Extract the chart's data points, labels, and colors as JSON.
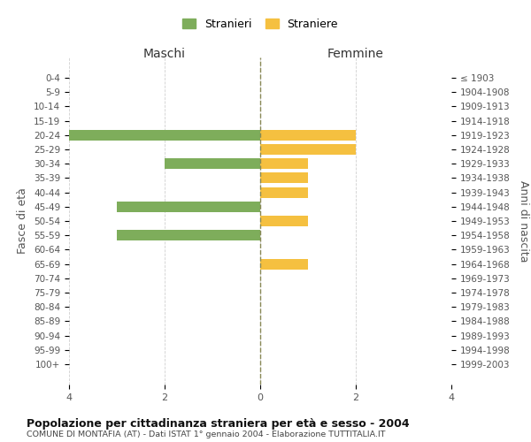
{
  "age_groups": [
    "0-4",
    "5-9",
    "10-14",
    "15-19",
    "20-24",
    "25-29",
    "30-34",
    "35-39",
    "40-44",
    "45-49",
    "50-54",
    "55-59",
    "60-64",
    "65-69",
    "70-74",
    "75-79",
    "80-84",
    "85-89",
    "90-94",
    "95-99",
    "100+"
  ],
  "birth_years": [
    "1999-2003",
    "1994-1998",
    "1989-1993",
    "1984-1988",
    "1979-1983",
    "1974-1978",
    "1969-1973",
    "1964-1968",
    "1959-1963",
    "1954-1958",
    "1949-1953",
    "1944-1948",
    "1939-1943",
    "1934-1938",
    "1929-1933",
    "1924-1928",
    "1919-1923",
    "1914-1918",
    "1909-1913",
    "1904-1908",
    "≤ 1903"
  ],
  "maschi": [
    0,
    0,
    0,
    0,
    4,
    0,
    2,
    0,
    0,
    3,
    0,
    3,
    0,
    0,
    0,
    0,
    0,
    0,
    0,
    0,
    0
  ],
  "femmine": [
    0,
    0,
    0,
    0,
    2,
    2,
    1,
    1,
    1,
    0,
    1,
    0,
    0,
    1,
    0,
    0,
    0,
    0,
    0,
    0,
    0
  ],
  "color_maschi": "#7ead5b",
  "color_femmine": "#f5c040",
  "title": "Popolazione per cittadinanza straniera per età e sesso - 2004",
  "subtitle": "COMUNE DI MONTAFIA (AT) - Dati ISTAT 1° gennaio 2004 - Elaborazione TUTTITALIA.IT",
  "xlabel_left": "Maschi",
  "xlabel_right": "Femmine",
  "ylabel_left": "Fasce di età",
  "ylabel_right": "Anni di nascita",
  "legend_maschi": "Stranieri",
  "legend_femmine": "Straniere",
  "xlim": 4,
  "bg_color": "#ffffff",
  "grid_color": "#d0d0d0",
  "bar_height": 0.75
}
